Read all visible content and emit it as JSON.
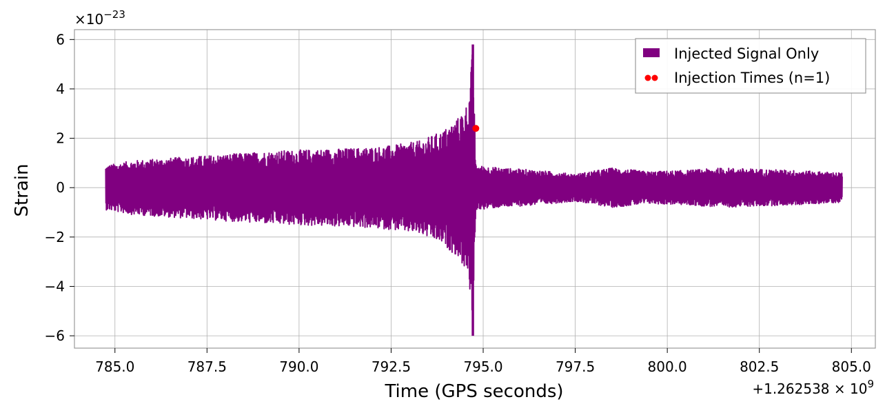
{
  "chart_data": {
    "type": "line",
    "title": "",
    "xlabel": "Time (GPS seconds)",
    "ylabel": "Strain",
    "x_offset_label": "+1.262538 × 10",
    "x_offset_exponent": "9",
    "y_scale_label": "×10",
    "y_scale_exponent": "−23",
    "xlim": [
      783.9,
      805.65
    ],
    "ylim": [
      -6.5,
      6.4
    ],
    "x_ticks": [
      785.0,
      787.5,
      790.0,
      792.5,
      795.0,
      797.5,
      800.0,
      802.5,
      805.0
    ],
    "x_tick_labels": [
      "785.0",
      "787.5",
      "790.0",
      "792.5",
      "795.0",
      "797.5",
      "800.0",
      "802.5",
      "805.0"
    ],
    "y_ticks": [
      -6,
      -4,
      -2,
      0,
      2,
      4,
      6
    ],
    "y_tick_labels": [
      "−6",
      "−4",
      "−2",
      "0",
      "2",
      "4",
      "6"
    ],
    "grid": true,
    "legend_position": "top-right",
    "series": [
      {
        "name": "Injected Signal Only",
        "kind": "line",
        "color": "#800080",
        "x_start": 784.75,
        "x_end": 804.75,
        "envelope": [
          [
            784.75,
            0.9
          ],
          [
            785.5,
            1.1
          ],
          [
            786.5,
            1.2
          ],
          [
            787.5,
            1.3
          ],
          [
            788.5,
            1.4
          ],
          [
            789.5,
            1.5
          ],
          [
            790.5,
            1.55
          ],
          [
            791.5,
            1.6
          ],
          [
            792.5,
            1.7
          ],
          [
            793.3,
            1.9
          ],
          [
            793.9,
            2.3
          ],
          [
            794.3,
            2.8
          ],
          [
            794.6,
            3.5
          ],
          [
            794.72,
            5.8
          ],
          [
            794.8,
            0.9
          ],
          [
            795.5,
            0.8
          ],
          [
            796.5,
            0.7
          ],
          [
            797.5,
            0.55
          ],
          [
            798.5,
            0.8
          ],
          [
            799.5,
            0.65
          ],
          [
            800.5,
            0.7
          ],
          [
            801.5,
            0.8
          ],
          [
            802.5,
            0.75
          ],
          [
            803.5,
            0.7
          ],
          [
            804.75,
            0.6
          ]
        ]
      },
      {
        "name": "Injection Times (n=1)",
        "kind": "scatter",
        "color": "#ff0000",
        "points": [
          {
            "x": 794.8,
            "y": 2.4
          }
        ]
      }
    ]
  }
}
